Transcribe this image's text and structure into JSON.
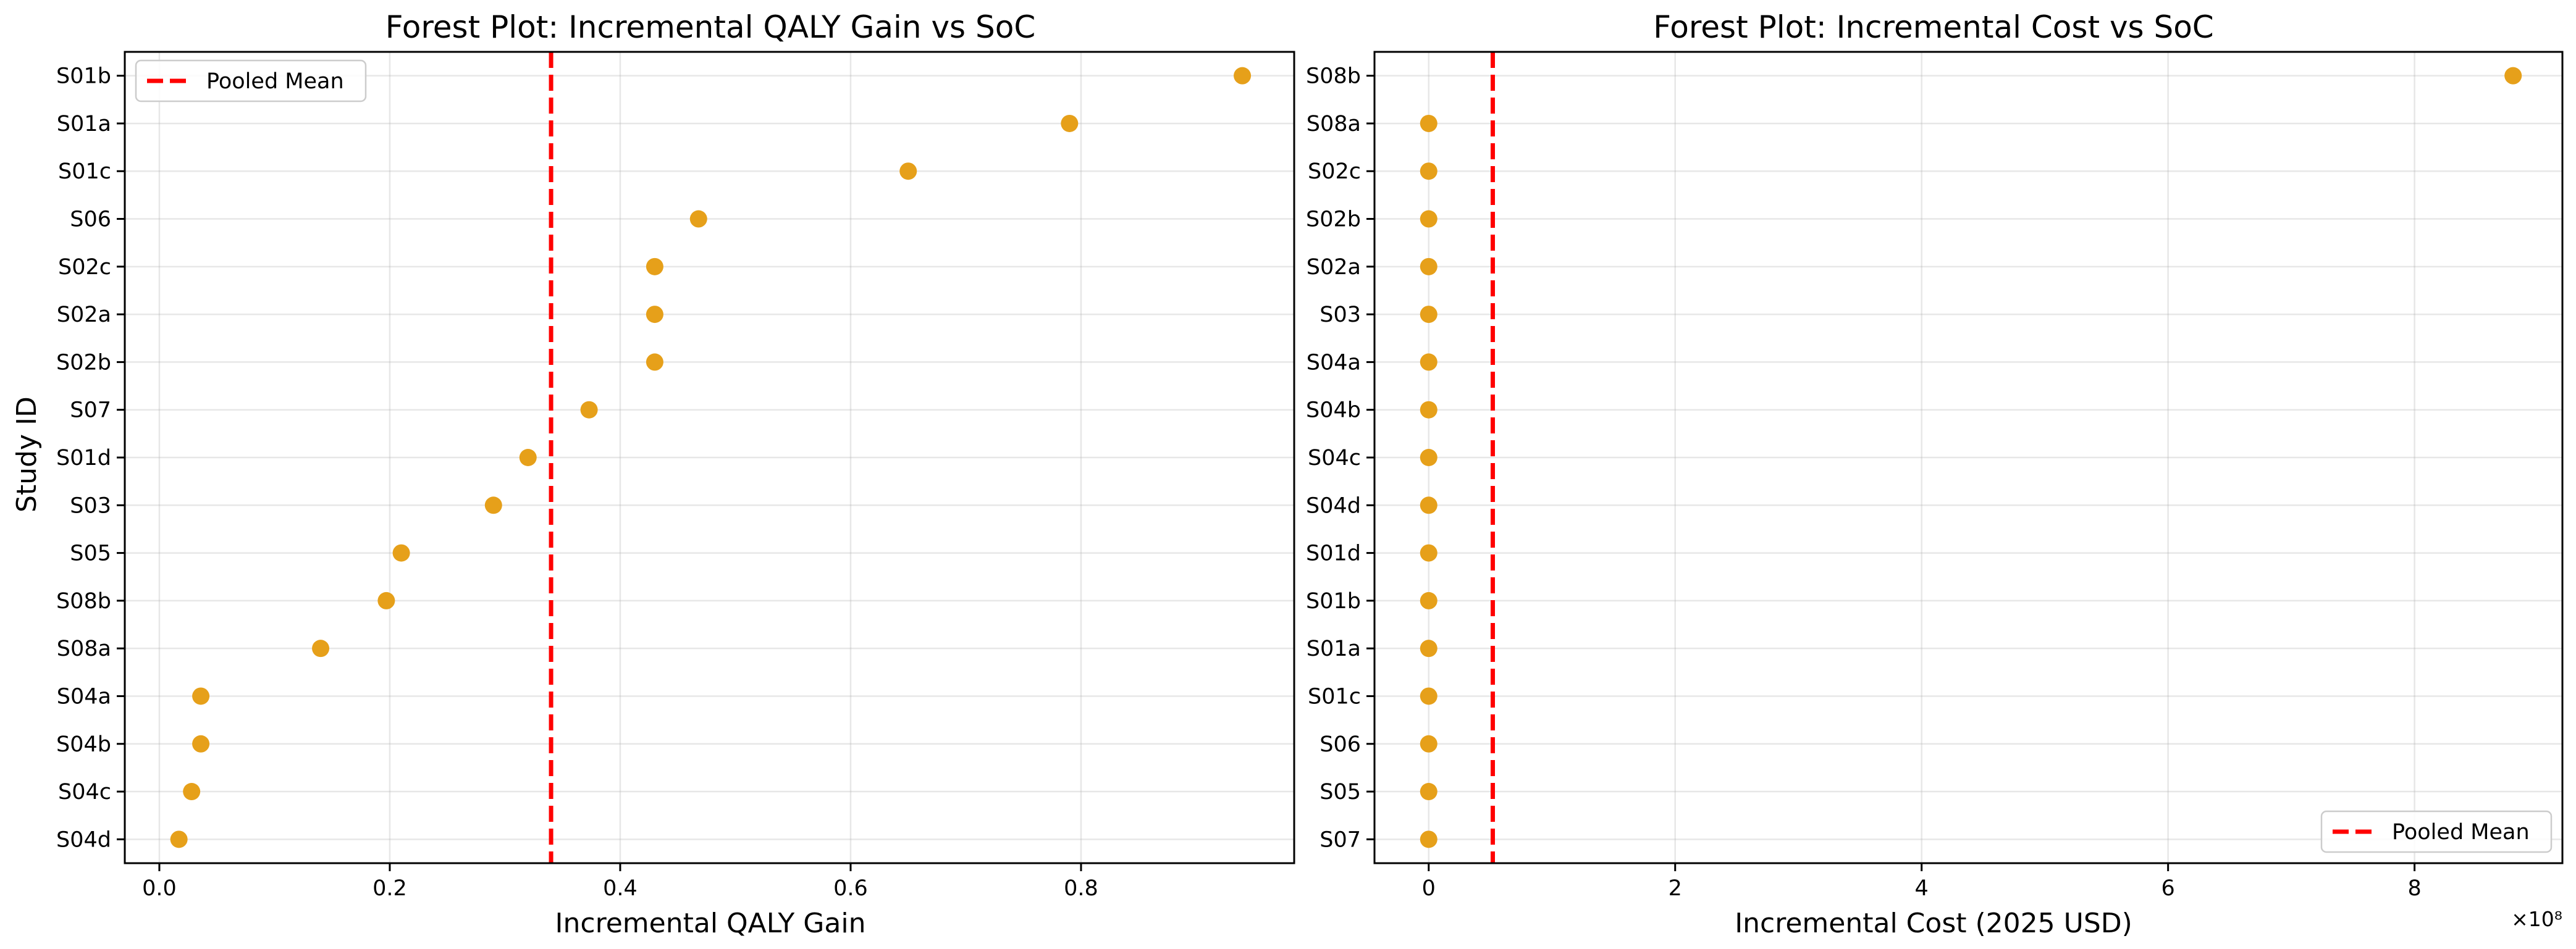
{
  "chart_data": [
    {
      "type": "scatter",
      "title": "Forest Plot: Incremental QALY Gain vs SoC",
      "xlabel": "Incremental QALY Gain",
      "ylabel": "Study ID",
      "xlim": [
        -0.03,
        0.985
      ],
      "xticks": [
        0.0,
        0.2,
        0.4,
        0.6,
        0.8
      ],
      "xtick_labels": [
        "0.0",
        "0.2",
        "0.4",
        "0.6",
        "0.8"
      ],
      "grid": true,
      "point_color": "#E6A01A",
      "mean_color": "#FF0000",
      "pooled_mean": 0.34,
      "legend": {
        "label": "Pooled Mean",
        "placement": "upper left"
      },
      "offset_text": "",
      "categories": [
        "S01b",
        "S01a",
        "S01c",
        "S06",
        "S02c",
        "S02a",
        "S02b",
        "S07",
        "S01d",
        "S03",
        "S05",
        "S08b",
        "S08a",
        "S04a",
        "S04b",
        "S04c",
        "S04d"
      ],
      "values": [
        0.94,
        0.79,
        0.65,
        0.468,
        0.43,
        0.43,
        0.43,
        0.373,
        0.32,
        0.29,
        0.21,
        0.197,
        0.14,
        0.036,
        0.036,
        0.028,
        0.017
      ]
    },
    {
      "type": "scatter",
      "title": "Forest Plot: Incremental Cost vs SoC",
      "xlabel": "Incremental Cost (2025 USD)",
      "ylabel": "",
      "xlim": [
        -0.44,
        9.2
      ],
      "xticks": [
        0,
        2,
        4,
        6,
        8
      ],
      "xtick_labels": [
        "0",
        "2",
        "4",
        "6",
        "8"
      ],
      "grid": true,
      "point_color": "#E6A01A",
      "mean_color": "#FF0000",
      "pooled_mean": 0.52,
      "legend": {
        "label": "Pooled Mean",
        "placement": "lower right"
      },
      "offset_text": "×10⁸",
      "categories": [
        "S08b",
        "S08a",
        "S02c",
        "S02b",
        "S02a",
        "S03",
        "S04a",
        "S04b",
        "S04c",
        "S04d",
        "S01d",
        "S01b",
        "S01a",
        "S01c",
        "S06",
        "S05",
        "S07"
      ],
      "values": [
        8.8,
        0.0,
        0.0,
        0.0,
        0.0,
        0.0,
        0.0,
        0.0,
        0.0,
        0.0,
        0.0,
        0.0,
        0.0,
        0.0,
        0.0,
        0.0,
        0.0
      ]
    }
  ]
}
